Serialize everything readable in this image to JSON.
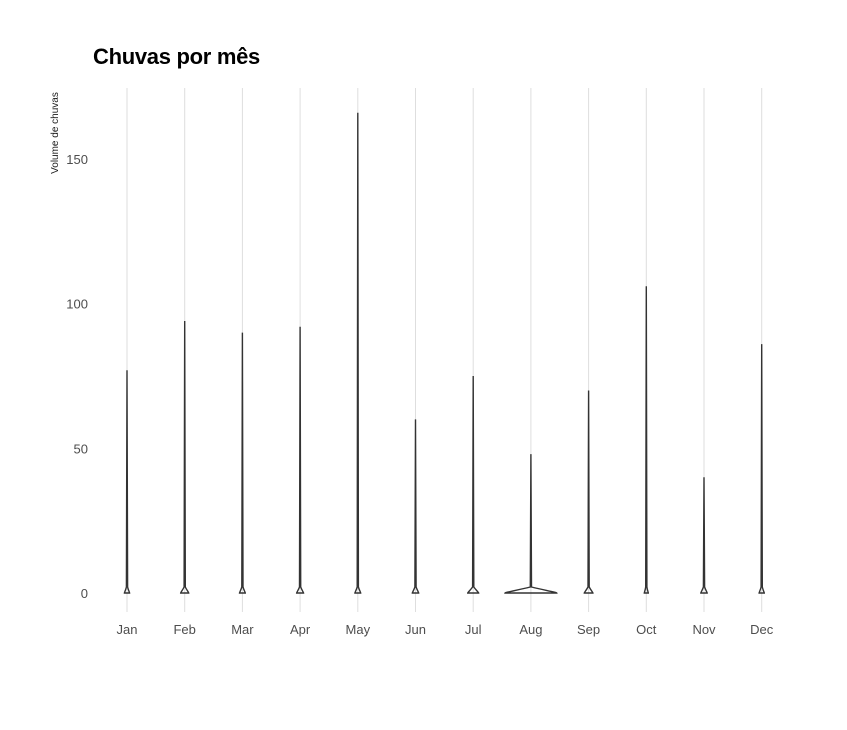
{
  "chart_data": {
    "type": "violin",
    "title": "Chuvas por mês",
    "xlabel": "",
    "ylabel": "Volume de chuvas",
    "ylim": [
      -8,
      175
    ],
    "yticks": [
      0,
      50,
      100,
      150
    ],
    "categories": [
      "Jan",
      "Feb",
      "Mar",
      "Apr",
      "May",
      "Jun",
      "Jul",
      "Aug",
      "Sep",
      "Oct",
      "Nov",
      "Dec"
    ],
    "max_values": [
      77,
      94,
      90,
      92,
      166,
      60,
      75,
      48,
      70,
      106,
      40,
      86
    ],
    "base_width": [
      0.09,
      0.14,
      0.1,
      0.12,
      0.1,
      0.11,
      0.19,
      0.9,
      0.15,
      0.07,
      0.11,
      0.09
    ],
    "grid": "vertical-only",
    "colors": {
      "outline": "#333333",
      "grid": "#dedede",
      "text": "#4d4d4d"
    }
  }
}
